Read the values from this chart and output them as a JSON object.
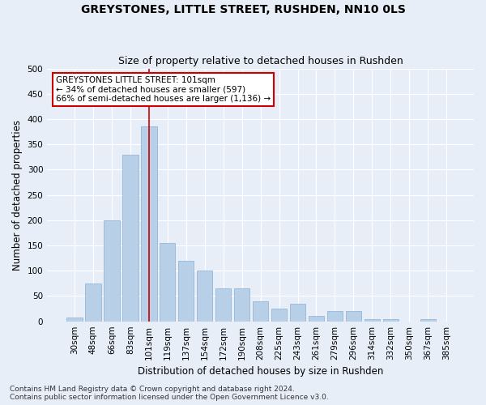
{
  "title": "GREYSTONES, LITTLE STREET, RUSHDEN, NN10 0LS",
  "subtitle": "Size of property relative to detached houses in Rushden",
  "xlabel": "Distribution of detached houses by size in Rushden",
  "ylabel": "Number of detached properties",
  "categories": [
    "30sqm",
    "48sqm",
    "66sqm",
    "83sqm",
    "101sqm",
    "119sqm",
    "137sqm",
    "154sqm",
    "172sqm",
    "190sqm",
    "208sqm",
    "225sqm",
    "243sqm",
    "261sqm",
    "279sqm",
    "296sqm",
    "314sqm",
    "332sqm",
    "350sqm",
    "367sqm",
    "385sqm"
  ],
  "values": [
    8,
    75,
    200,
    330,
    385,
    155,
    120,
    100,
    65,
    65,
    40,
    25,
    35,
    10,
    20,
    20,
    5,
    5,
    0,
    5,
    0
  ],
  "bar_color": "#b8cfe8",
  "bar_edge_color": "#8aafd4",
  "vline_x_index": 4,
  "vline_color": "#cc0000",
  "annotation_text": "GREYSTONES LITTLE STREET: 101sqm\n← 34% of detached houses are smaller (597)\n66% of semi-detached houses are larger (1,136) →",
  "annotation_box_facecolor": "#ffffff",
  "annotation_box_edgecolor": "#cc0000",
  "ylim": [
    0,
    500
  ],
  "yticks": [
    0,
    50,
    100,
    150,
    200,
    250,
    300,
    350,
    400,
    450,
    500
  ],
  "footer_line1": "Contains HM Land Registry data © Crown copyright and database right 2024.",
  "footer_line2": "Contains public sector information licensed under the Open Government Licence v3.0.",
  "bg_color": "#e8eef8",
  "plot_bg_color": "#e8eef8",
  "grid_color": "#ffffff",
  "title_fontsize": 10,
  "subtitle_fontsize": 9,
  "axis_label_fontsize": 8.5,
  "tick_fontsize": 7.5,
  "annotation_fontsize": 7.5,
  "footer_fontsize": 6.5
}
